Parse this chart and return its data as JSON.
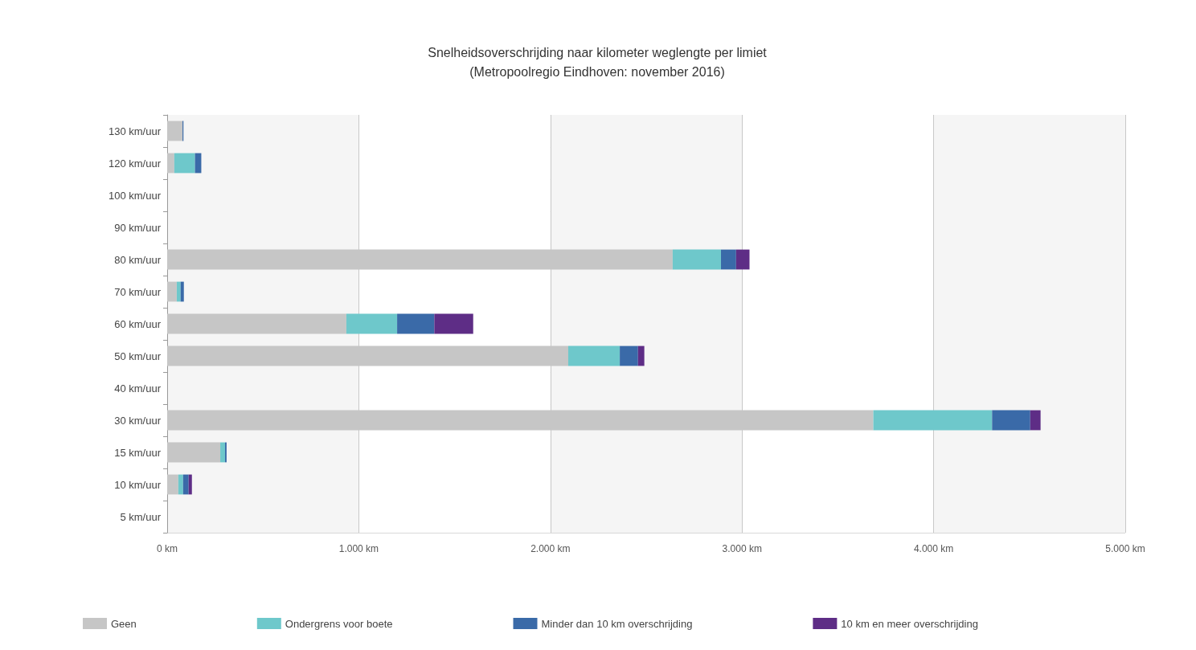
{
  "chart_data": {
    "type": "bar",
    "orientation": "horizontal",
    "stacked": true,
    "title": "Snelheidsoverschrijding naar kilometer weglengte per limiet",
    "subtitle": "(Metropoolregio Eindhoven: november 2016)",
    "categories": [
      "130 km/uur",
      "120 km/uur",
      "100 km/uur",
      "90 km/uur",
      "80 km/uur",
      "70 km/uur",
      "60 km/uur",
      "50 km/uur",
      "40 km/uur",
      "30 km/uur",
      "15 km/uur",
      "10 km/uur",
      "5 km/uur"
    ],
    "series": [
      {
        "name": "Geen",
        "color": "#c6c6c6",
        "values": [
          80,
          37,
          null,
          0,
          2638,
          50,
          935,
          2093,
          0,
          3685,
          277,
          58,
          0
        ]
      },
      {
        "name": "Ondergrens voor boete",
        "color": "#6ec8cb",
        "values": [
          0,
          108,
          0,
          0,
          252,
          20,
          265,
          269,
          0,
          620,
          25,
          25,
          0
        ]
      },
      {
        "name": "Minder dan 10 km overschrijding",
        "color": "#3a6aa8",
        "values": [
          5,
          33,
          0,
          0,
          79,
          17,
          194,
          95,
          0,
          199,
          8,
          29,
          0
        ]
      },
      {
        "name": "10 km en meer overschrijding",
        "color": "#5e2d86",
        "values": [
          0,
          0,
          0,
          0,
          70,
          0,
          203,
          33,
          0,
          54,
          0,
          17,
          0
        ]
      }
    ],
    "xlim": [
      0,
      5000
    ],
    "xticks": [
      {
        "value": 0,
        "label": "0 km"
      },
      {
        "value": 1000,
        "label": "1.000 km"
      },
      {
        "value": 2000,
        "label": "2.000 km"
      },
      {
        "value": 3000,
        "label": "3.000 km"
      },
      {
        "value": 4000,
        "label": "4.000 km"
      },
      {
        "value": 5000,
        "label": "5.000 km"
      }
    ],
    "grid": true,
    "legend": "bottom"
  }
}
